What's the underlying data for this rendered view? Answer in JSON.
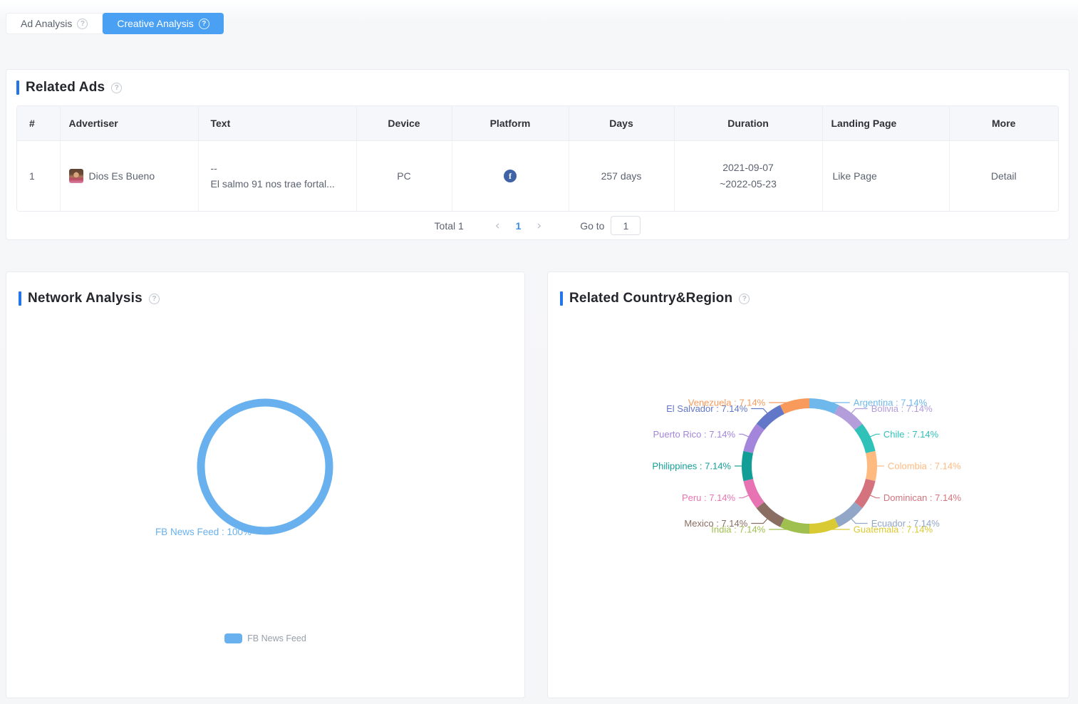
{
  "ui": {
    "help_glyph": "?",
    "facebook_glyph": "f",
    "prev_icon": "‹",
    "next_icon": "›"
  },
  "tabs": [
    {
      "label": "Ad Analysis",
      "active": false
    },
    {
      "label": "Creative Analysis",
      "active": true
    }
  ],
  "related_ads": {
    "title": "Related Ads",
    "columns": [
      "#",
      "Advertiser",
      "Text",
      "Device",
      "Platform",
      "Days",
      "Duration",
      "Landing Page",
      "More"
    ],
    "row": {
      "index": "1",
      "advertiser": "Dios Es Bueno",
      "text_line1": "--",
      "text_line2": "El salmo 91 nos trae fortal...",
      "device": "PC",
      "platform": "Facebook",
      "days": "257 days",
      "duration_start": "2021-09-07",
      "duration_end": "~2022-05-23",
      "landing_page": "Like Page",
      "more": "Detail"
    },
    "pagination": {
      "total": "Total 1",
      "page": "1",
      "goto_label": "Go to",
      "goto_value": "1"
    }
  },
  "network_analysis": {
    "title": "Network Analysis"
  },
  "country_region": {
    "title": "Related Country&Region"
  },
  "chart_data": [
    {
      "id": "network",
      "type": "pie",
      "title": "Network Analysis",
      "series": [
        {
          "name": "FB News Feed",
          "value": 100,
          "color": "#68b1ee"
        }
      ],
      "label_format": "FB News Feed : 100%",
      "legend": [
        "FB News Feed"
      ],
      "legend_position": "bottom"
    },
    {
      "id": "country",
      "type": "pie",
      "title": "Related Country&Region",
      "unit": "%",
      "series": [
        {
          "name": "Argentina",
          "value": 7.14,
          "color": "#6eb8ec"
        },
        {
          "name": "Bolivia",
          "value": 7.14,
          "color": "#b39ddb"
        },
        {
          "name": "Chile",
          "value": 7.14,
          "color": "#30c2b9"
        },
        {
          "name": "Colombia",
          "value": 7.14,
          "color": "#ffba80"
        },
        {
          "name": "Dominican",
          "value": 7.14,
          "color": "#d4737e"
        },
        {
          "name": "Ecuador",
          "value": 7.14,
          "color": "#92a6c8"
        },
        {
          "name": "Guatemala",
          "value": 7.14,
          "color": "#d9c932"
        },
        {
          "name": "India",
          "value": 7.14,
          "color": "#9fbf4e"
        },
        {
          "name": "Mexico",
          "value": 7.14,
          "color": "#8a6e62"
        },
        {
          "name": "Peru",
          "value": 7.14,
          "color": "#e873b2"
        },
        {
          "name": "Philippines",
          "value": 7.14,
          "color": "#129e97"
        },
        {
          "name": "Puerto Rico",
          "value": 7.14,
          "color": "#a385dc"
        },
        {
          "name": "El Salvador",
          "value": 7.14,
          "color": "#6377c9"
        },
        {
          "name": "Venezuela",
          "value": 7.14,
          "color": "#f79a5c"
        }
      ],
      "label_suffix": " : 7.14%"
    }
  ]
}
